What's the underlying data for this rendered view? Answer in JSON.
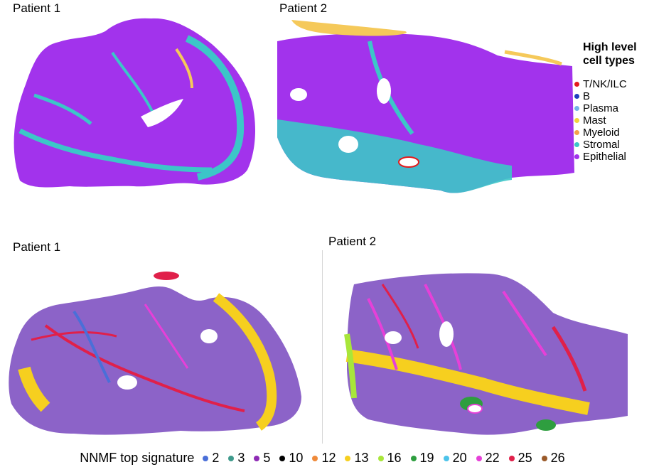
{
  "panels": {
    "top_left": "Patient 1",
    "top_right": "Patient 2",
    "bottom_left": "Patient 1",
    "bottom_right": "Patient 2"
  },
  "cell_legend": {
    "title_line1": "High level",
    "title_line2": "cell types",
    "items": [
      {
        "label": "T/NK/ILC",
        "color": "#e31a1c"
      },
      {
        "label": "B",
        "color": "#1f3fbf"
      },
      {
        "label": "Plasma",
        "color": "#74b3e8"
      },
      {
        "label": "Mast",
        "color": "#f2d33a"
      },
      {
        "label": "Myeloid",
        "color": "#f3a24a"
      },
      {
        "label": "Stromal",
        "color": "#3cc6c8"
      },
      {
        "label": "Epithelial",
        "color": "#a233ec"
      }
    ]
  },
  "nnmf_legend": {
    "title": "NNMF top signature",
    "items": [
      {
        "label": "2",
        "color": "#4a6fd8"
      },
      {
        "label": "3",
        "color": "#3f9a8c"
      },
      {
        "label": "5",
        "color": "#8e2bb5"
      },
      {
        "label": "10",
        "color": "#000000"
      },
      {
        "label": "12",
        "color": "#ef8a3a"
      },
      {
        "label": "13",
        "color": "#f6cf1f"
      },
      {
        "label": "16",
        "color": "#a8e63a"
      },
      {
        "label": "19",
        "color": "#2e9e3f"
      },
      {
        "label": "20",
        "color": "#4cc3ea"
      },
      {
        "label": "22",
        "color": "#e640d8"
      },
      {
        "label": "25",
        "color": "#e0204a"
      },
      {
        "label": "26",
        "color": "#9a5a2a"
      }
    ]
  },
  "tissue_colors": {
    "epithelial": "#a233ec",
    "stromal": "#3cc6c8",
    "mast": "#f5c95a",
    "nnmf_base": "#8c63c8",
    "nnmf_red": "#e0204a",
    "nnmf_yellow": "#f6cf1f",
    "nnmf_pink": "#e640d8",
    "nnmf_blue": "#4a6fd8",
    "nnmf_green": "#2e9e3f"
  }
}
